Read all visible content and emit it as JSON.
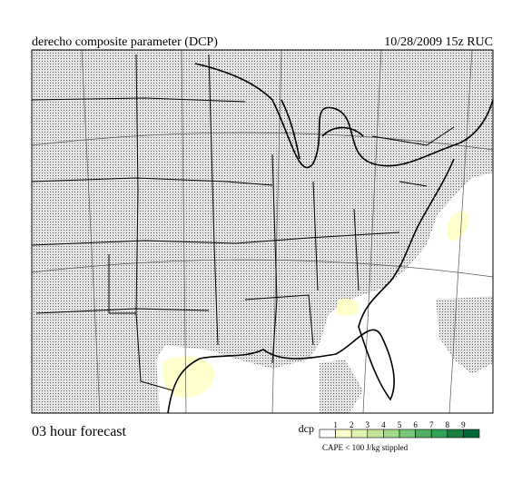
{
  "header": {
    "title": "derecho composite parameter (DCP)",
    "valid": "10/28/2009  15z  RUC"
  },
  "footer": {
    "forecast": "03 hour forecast"
  },
  "legend": {
    "label": "dcp",
    "levels": [
      1,
      2,
      3,
      4,
      5,
      6,
      7,
      8,
      9
    ],
    "colors": [
      "#ffffff",
      "#ffffcc",
      "#e2f2b0",
      "#c2e699",
      "#a1d98a",
      "#78c679",
      "#4fae62",
      "#31a354",
      "#17813f",
      "#006837"
    ],
    "note": "CAPE < 100 J/kg stippled"
  }
}
